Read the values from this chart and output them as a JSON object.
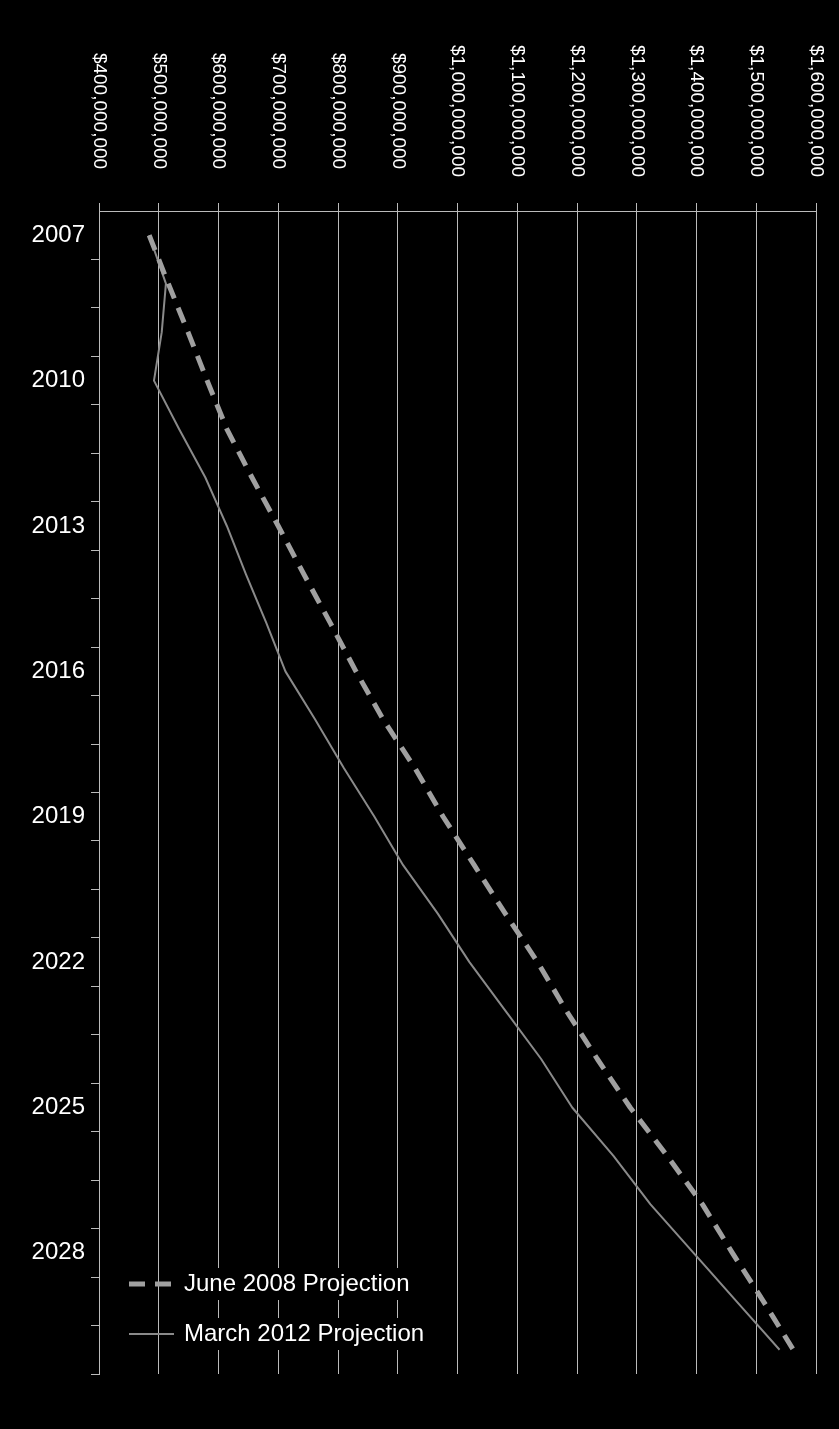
{
  "chart_data": {
    "type": "line",
    "categories": [
      "2007",
      null,
      null,
      "2010",
      null,
      null,
      "2013",
      null,
      null,
      "2016",
      null,
      null,
      "2019",
      null,
      null,
      "2022",
      null,
      null,
      "2025",
      null,
      null,
      "2028",
      null,
      null
    ],
    "series": [
      {
        "name": "June 2008 Projection",
        "color": "#a0a0a0",
        "line_style": "dashed",
        "values": [
          484000000,
          516000000,
          549000000,
          581000000,
          614000000,
          656000000,
          700000000,
          743000000,
          787000000,
          830000000,
          876000000,
          929000000,
          976000000,
          1028000000,
          1080000000,
          1134000000,
          1182000000,
          1234000000,
          1289000000,
          1351000000,
          1410000000,
          1460000000,
          1512000000,
          1562000000
        ]
      },
      {
        "name": "March 2012 Projection",
        "color": "#8a8a8a",
        "line_style": "solid",
        "values": [
          484000000,
          512000000,
          505000000,
          492000000,
          534000000,
          578000000,
          614000000,
          646000000,
          680000000,
          712000000,
          762000000,
          810000000,
          861000000,
          909000000,
          967000000,
          1020000000,
          1080000000,
          1140000000,
          1192000000,
          1261000000,
          1323000000,
          1395000000,
          1467000000,
          1539000000
        ]
      }
    ],
    "orientation": "horizontal",
    "xlim": [
      400000000,
      1600000000
    ],
    "xticks": [
      {
        "value": 400000000,
        "label": "$400,000,000"
      },
      {
        "value": 500000000,
        "label": "$500,000,000"
      },
      {
        "value": 600000000,
        "label": "$600,000,000"
      },
      {
        "value": 700000000,
        "label": "$700,000,000"
      },
      {
        "value": 800000000,
        "label": "$800,000,000"
      },
      {
        "value": 900000000,
        "label": "$900,000,000"
      },
      {
        "value": 1000000000,
        "label": "$1,000,000,000"
      },
      {
        "value": 1100000000,
        "label": "$1,100,000,000"
      },
      {
        "value": 1200000000,
        "label": "$1,200,000,000"
      },
      {
        "value": 1300000000,
        "label": "$1,300,000,000"
      },
      {
        "value": 1400000000,
        "label": "$1,400,000,000"
      },
      {
        "value": 1500000000,
        "label": "$1,500,000,000"
      },
      {
        "value": 1600000000,
        "label": "$1,600,000,000"
      }
    ],
    "grid": "x",
    "legend": "bottom left",
    "marker": "none"
  }
}
